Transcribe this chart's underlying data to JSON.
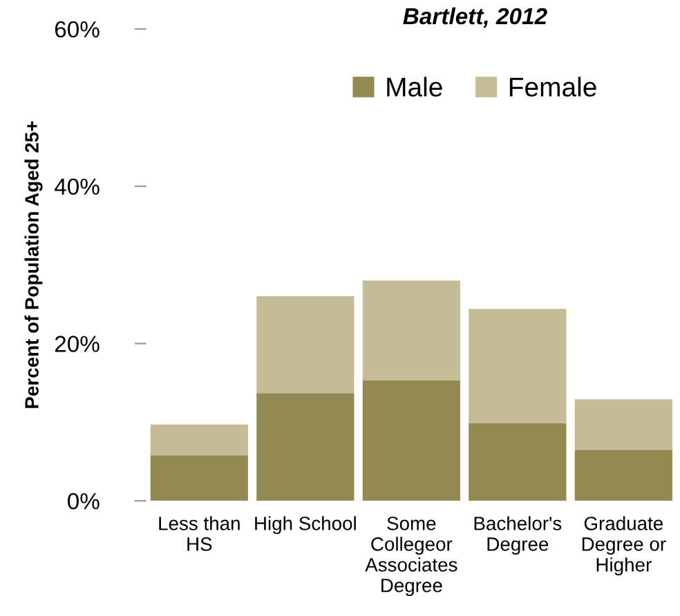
{
  "chart_data": {
    "type": "bar",
    "title": "Bartlett, 2012",
    "ylabel": "Percent of Population Aged 25+",
    "categories": [
      "Less than\nHS",
      "High School",
      "Some\nCollegeor\nAssociates\nDegree",
      "Bachelor's\nDegree",
      "Graduate\nDegree or\nHigher"
    ],
    "stacked": true,
    "series": [
      {
        "name": "Male",
        "color": "#938953",
        "values": [
          5.8,
          13.7,
          15.3,
          9.9,
          6.5
        ]
      },
      {
        "name": "Female",
        "color": "#c4bd97",
        "values": [
          3.9,
          12.3,
          12.7,
          14.5,
          6.4
        ]
      }
    ],
    "ylim": [
      0,
      60
    ],
    "yticks": [
      {
        "value": 0,
        "label": "0%"
      },
      {
        "value": 20,
        "label": "20%"
      },
      {
        "value": 40,
        "label": "40%"
      },
      {
        "value": 60,
        "label": "60%"
      }
    ],
    "grid": false,
    "legend": "top"
  }
}
